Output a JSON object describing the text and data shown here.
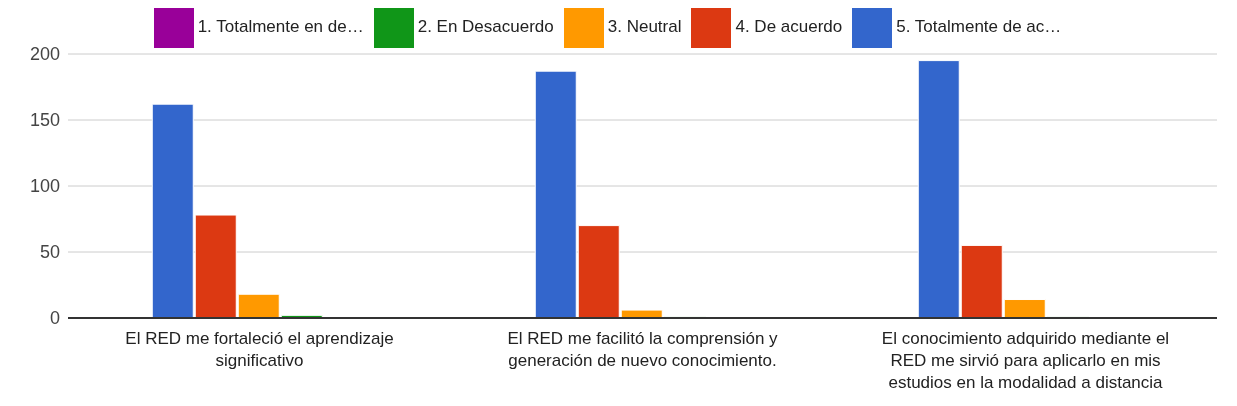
{
  "chart_data": {
    "type": "bar",
    "categories": [
      "El RED me fortaleció el aprendizaje significativo",
      "El RED me facilitó la comprensión y generación de nuevo conocimiento.",
      "El conocimiento adquirido mediante el RED me sirvió para aplicarlo en mis estudios en la modalidad a distancia"
    ],
    "series": [
      {
        "name": "5. Totalmente de ac…",
        "color": "#3366cc",
        "values": [
          162,
          187,
          195
        ]
      },
      {
        "name": "4. De acuerdo",
        "color": "#dc3912",
        "values": [
          78,
          70,
          55
        ]
      },
      {
        "name": "3. Neutral",
        "color": "#ff9900",
        "values": [
          18,
          6,
          14
        ]
      },
      {
        "name": "2. En Desacuerdo",
        "color": "#109618",
        "values": [
          2,
          1,
          1
        ]
      },
      {
        "name": "1. Totalmente en de…",
        "color": "#990099",
        "values": [
          0,
          0,
          0
        ]
      }
    ],
    "ylim": [
      0,
      200
    ],
    "yticks": [
      0,
      50,
      100,
      150,
      200
    ],
    "grid": "y",
    "legend": "top"
  }
}
